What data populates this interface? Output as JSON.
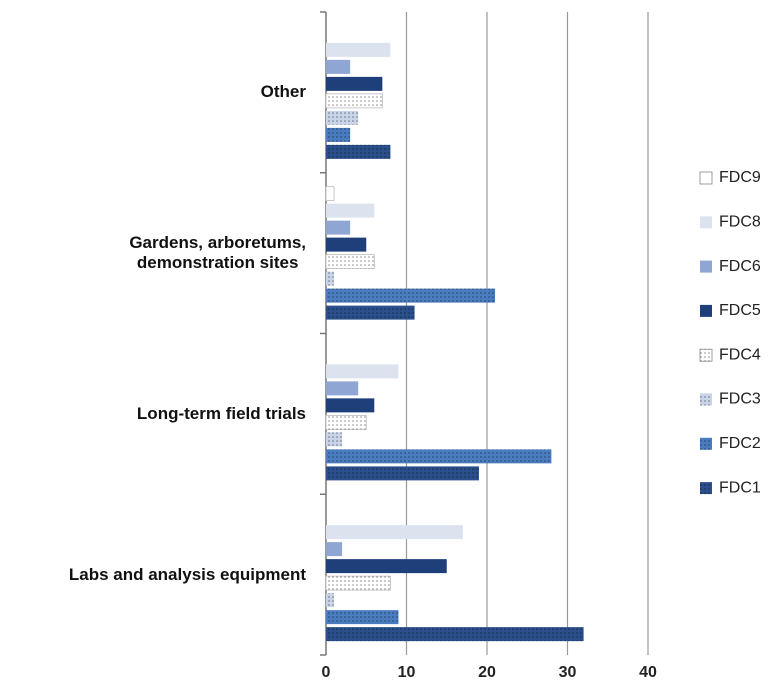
{
  "chart_data": {
    "type": "bar",
    "orientation": "horizontal",
    "categories": [
      "Other",
      "Gardens, arboretums,\ndemonstration sites",
      "Long-term field trials",
      "Labs and analysis equipment"
    ],
    "series": [
      {
        "name": "FDC9",
        "color": "#ffffff",
        "pattern": "none",
        "values": [
          0,
          1,
          0,
          0
        ]
      },
      {
        "name": "FDC8",
        "color": "#dce3ef",
        "pattern": "none",
        "values": [
          8,
          6,
          9,
          17
        ]
      },
      {
        "name": "FDC6",
        "color": "#8fa6d4",
        "pattern": "none",
        "values": [
          3,
          3,
          4,
          2
        ]
      },
      {
        "name": "FDC5",
        "color": "#1f3f7a",
        "pattern": "none",
        "values": [
          7,
          5,
          6,
          15
        ]
      },
      {
        "name": "FDC4",
        "color": "#ffffff",
        "pattern": "dots",
        "values": [
          7,
          6,
          5,
          8
        ]
      },
      {
        "name": "FDC3",
        "color": "#c8d4e8",
        "pattern": "dots",
        "values": [
          4,
          1,
          2,
          1
        ]
      },
      {
        "name": "FDC2",
        "color": "#4a7cc0",
        "pattern": "dots",
        "values": [
          3,
          21,
          28,
          9
        ]
      },
      {
        "name": "FDC1",
        "color": "#2a4f8c",
        "pattern": "dots",
        "values": [
          8,
          11,
          19,
          32
        ]
      }
    ],
    "xlim": [
      0,
      40
    ],
    "xticks": [
      0,
      10,
      20,
      30,
      40
    ],
    "grid": true,
    "legend": "right"
  }
}
